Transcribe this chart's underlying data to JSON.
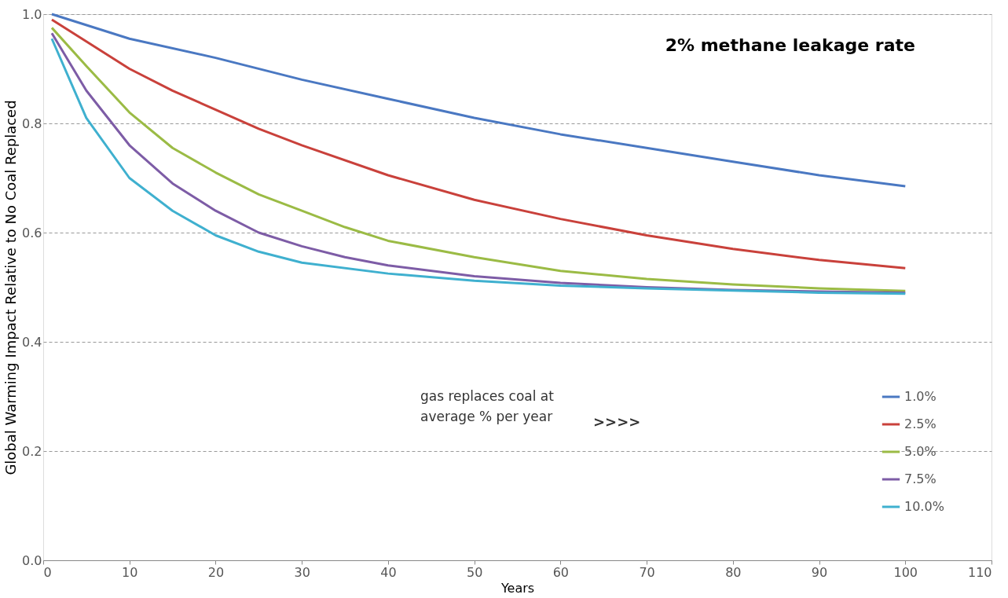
{
  "chart_data": {
    "type": "line",
    "title": "2% methane leakage rate",
    "xlabel": "Years",
    "ylabel": "Global Warming Impact Relative to No Coal Replaced",
    "legend_title": null,
    "series": [
      {
        "name": "1.0%",
        "color": "#4a78c2",
        "x": [
          1,
          10,
          20,
          30,
          40,
          50,
          60,
          70,
          80,
          90,
          100
        ],
        "values": [
          1.0,
          0.955,
          0.92,
          0.88,
          0.845,
          0.81,
          0.78,
          0.755,
          0.73,
          0.705,
          0.685
        ]
      },
      {
        "name": "2.5%",
        "color": "#c9413b",
        "x": [
          1,
          5,
          10,
          15,
          20,
          25,
          30,
          40,
          50,
          60,
          70,
          80,
          90,
          100
        ],
        "values": [
          0.99,
          0.95,
          0.9,
          0.86,
          0.825,
          0.79,
          0.76,
          0.705,
          0.66,
          0.625,
          0.595,
          0.57,
          0.55,
          0.535
        ]
      },
      {
        "name": "5.0%",
        "color": "#9bbb45",
        "x": [
          1,
          5,
          10,
          15,
          20,
          25,
          30,
          35,
          40,
          50,
          60,
          70,
          80,
          90,
          100
        ],
        "values": [
          0.975,
          0.905,
          0.82,
          0.755,
          0.71,
          0.67,
          0.64,
          0.61,
          0.585,
          0.555,
          0.53,
          0.515,
          0.505,
          0.498,
          0.493
        ]
      },
      {
        "name": "7.5%",
        "color": "#7d5ca6",
        "x": [
          1,
          5,
          10,
          15,
          20,
          25,
          30,
          35,
          40,
          50,
          60,
          70,
          80,
          90,
          100
        ],
        "values": [
          0.965,
          0.86,
          0.76,
          0.69,
          0.64,
          0.6,
          0.575,
          0.555,
          0.54,
          0.52,
          0.508,
          0.5,
          0.495,
          0.492,
          0.49
        ]
      },
      {
        "name": "10.0%",
        "color": "#3fb0cf",
        "x": [
          1,
          5,
          10,
          15,
          20,
          25,
          30,
          40,
          50,
          60,
          70,
          80,
          90,
          100
        ],
        "values": [
          0.955,
          0.81,
          0.7,
          0.64,
          0.595,
          0.565,
          0.545,
          0.525,
          0.512,
          0.503,
          0.498,
          0.494,
          0.49,
          0.488
        ]
      }
    ],
    "xlim": [
      0,
      110
    ],
    "xticks": [
      0,
      10,
      20,
      30,
      40,
      50,
      60,
      70,
      80,
      90,
      100,
      110
    ],
    "ylim": [
      0,
      1.0
    ],
    "yticks": [
      {
        "value": 0,
        "label": "0.0"
      },
      0.2,
      0.4,
      0.6,
      0.8,
      {
        "value": 1.0,
        "label": "1.0"
      }
    ],
    "grid": "y",
    "legend": "bottom right",
    "marker": "none",
    "line_style": "solid",
    "annotations": [
      "gas replaces coal at\naverage % per year",
      ">>>>"
    ]
  }
}
